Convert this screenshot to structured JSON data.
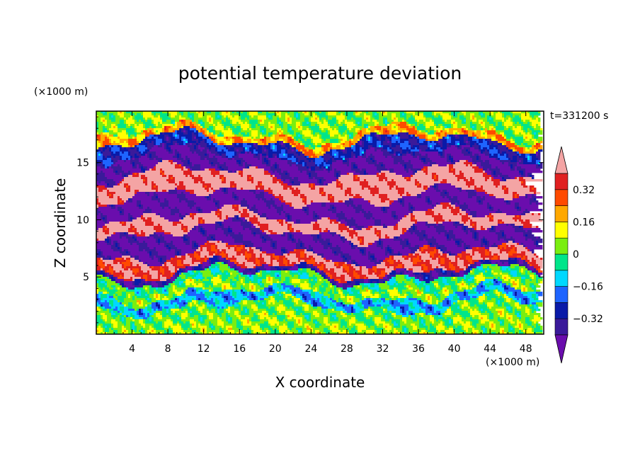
{
  "chart_data": {
    "type": "heatmap",
    "title": "potential temperature deviation",
    "xlabel": "X coordinate",
    "ylabel": "Z coordinate",
    "x_unit_label": "(×1000 m)",
    "y_unit_label": "(×1000 m)",
    "time_label": "t=331200 s",
    "xlim": [
      0,
      50
    ],
    "ylim": [
      0,
      19.5
    ],
    "x_ticks": [
      4,
      8,
      12,
      16,
      20,
      24,
      28,
      32,
      36,
      40,
      44,
      48
    ],
    "y_ticks": [
      5,
      10,
      15
    ],
    "colorbar": {
      "levels": [
        -0.4,
        -0.32,
        -0.24,
        -0.16,
        -0.08,
        0,
        0.08,
        0.16,
        0.24,
        0.32,
        0.4
      ],
      "tick_labels": [
        {
          "level": 0.32,
          "text": "0.32"
        },
        {
          "level": 0.16,
          "text": "0.16"
        },
        {
          "level": 0,
          "text": "0"
        },
        {
          "level": -0.16,
          "text": "−0.16"
        },
        {
          "level": -0.32,
          "text": "−0.32"
        }
      ],
      "colors": [
        "#6a0dad",
        "#3a1a9a",
        "#0a1aa8",
        "#1e64ff",
        "#00d8ff",
        "#00e58a",
        "#7aee10",
        "#ffff00",
        "#ffa800",
        "#ff4a00",
        "#e02020",
        "#f4a4a4"
      ]
    },
    "bands": [
      {
        "z": [
          0,
          1.2
        ],
        "value": 0.05
      },
      {
        "z": [
          1.2,
          2.5
        ],
        "value": 0.02
      },
      {
        "z": [
          2.5,
          3.5
        ],
        "value": -0.15
      },
      {
        "z": [
          3.5,
          4.3
        ],
        "value": 0.05
      },
      {
        "z": [
          4.3,
          5.1
        ],
        "value": -0.03
      },
      {
        "z": [
          5.1,
          5.6
        ],
        "value": -0.36
      },
      {
        "z": [
          5.6,
          7.0
        ],
        "value": 0.38
      },
      {
        "z": [
          7.0,
          9.0
        ],
        "value": -0.42
      },
      {
        "z": [
          9.0,
          10.2
        ],
        "value": 0.44
      },
      {
        "z": [
          10.2,
          12.0
        ],
        "value": -0.44
      },
      {
        "z": [
          12.0,
          14.0
        ],
        "value": 0.44
      },
      {
        "z": [
          14.0,
          15.6
        ],
        "value": -0.42
      },
      {
        "z": [
          15.6,
          16.8
        ],
        "value": -0.28
      },
      {
        "z": [
          16.8,
          17.5
        ],
        "value": 0.2
      },
      {
        "z": [
          17.5,
          19.5
        ],
        "value": 0.04
      }
    ]
  }
}
